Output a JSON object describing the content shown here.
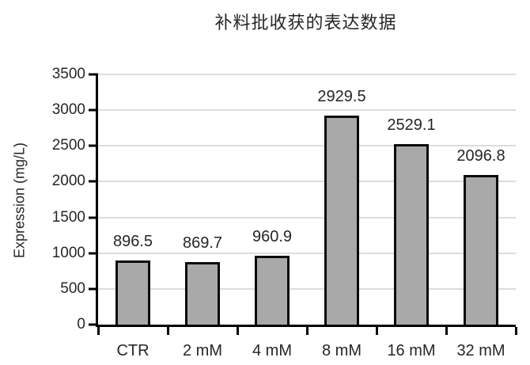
{
  "chart_data": {
    "type": "bar",
    "title": "补料批收获的表达数据",
    "xlabel": "",
    "ylabel": "Expression (mg/L)",
    "categories": [
      "CTR",
      "2 mM",
      "4 mM",
      "8 mM",
      "16 mM",
      "32 mM"
    ],
    "values": [
      896.5,
      869.7,
      960.9,
      2929.5,
      2529.1,
      2096.8
    ],
    "value_labels": [
      "896.5",
      "869.7",
      "960.9",
      "2929.5",
      "2529.1",
      "2096.8"
    ],
    "ylim": [
      0,
      3500
    ],
    "yticks": [
      0,
      500,
      1000,
      1500,
      2000,
      2500,
      3000,
      3500
    ],
    "grid": "horizontal",
    "legend_position": "none",
    "colors": {
      "bar_fill": "#a9a9a9",
      "bar_border": "#0a0a0a",
      "gridline": "#dcdcdc",
      "axis": "#000000",
      "text": "#262626",
      "background": "#ffffff"
    }
  }
}
